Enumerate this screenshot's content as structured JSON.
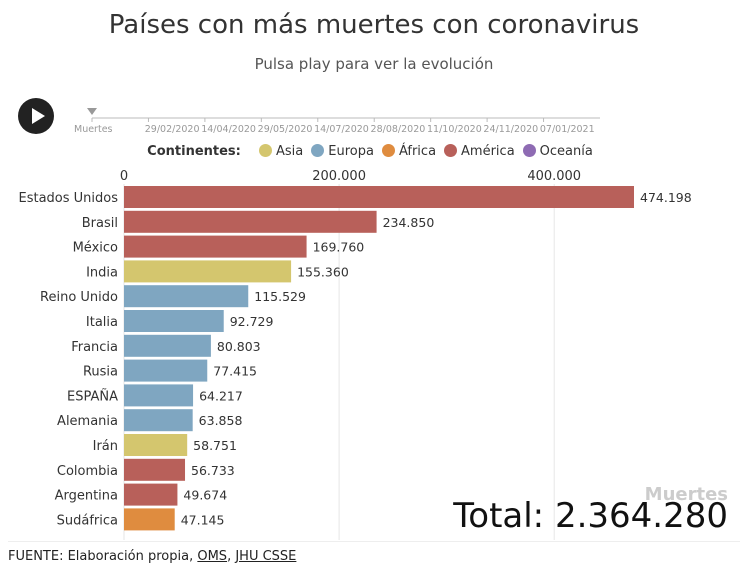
{
  "header": {
    "title": "Países con más muertes con coronavirus",
    "subtitle": "Pulsa play para ver la evolución"
  },
  "timeline": {
    "start_label": "Muertes",
    "dates": [
      "29/02/2020",
      "14/04/2020",
      "29/05/2020",
      "14/07/2020",
      "28/08/2020",
      "11/10/2020",
      "24/11/2020",
      "07/01/2021"
    ],
    "position_fraction": 0.0
  },
  "legend": {
    "title": "Continentes:",
    "items": [
      {
        "label": "Asia",
        "color": "#d4c66e"
      },
      {
        "label": "Europa",
        "color": "#7fa6c1"
      },
      {
        "label": "África",
        "color": "#df8c3f"
      },
      {
        "label": "América",
        "color": "#b8605a"
      },
      {
        "label": "Oceanía",
        "color": "#8e6bb3"
      }
    ]
  },
  "chart_data": {
    "type": "bar",
    "orientation": "horizontal",
    "categories": [
      "Estados Unidos",
      "Brasil",
      "México",
      "India",
      "Reino Unido",
      "Italia",
      "Francia",
      "Rusia",
      "ESPAÑA",
      "Alemania",
      "Irán",
      "Colombia",
      "Argentina",
      "Sudáfrica"
    ],
    "values": [
      474198,
      234850,
      169760,
      155360,
      115529,
      92729,
      80803,
      77415,
      64217,
      63858,
      58751,
      56733,
      49674,
      47145
    ],
    "value_labels": [
      "474.198",
      "234.850",
      "169.760",
      "155.360",
      "115.529",
      "92.729",
      "80.803",
      "77.415",
      "64.217",
      "63.858",
      "58.751",
      "56.733",
      "49.674",
      "47.145"
    ],
    "continents": [
      "América",
      "América",
      "América",
      "Asia",
      "Europa",
      "Europa",
      "Europa",
      "Europa",
      "Europa",
      "Europa",
      "Asia",
      "América",
      "América",
      "África"
    ],
    "xlim": [
      0,
      480000
    ],
    "xticks": [
      0,
      200000,
      400000
    ],
    "xtick_labels": [
      "0",
      "200.000",
      "400.000"
    ],
    "grid": true
  },
  "total": {
    "label": "Muertes",
    "text": "Total: 2.364.280"
  },
  "source": {
    "prefix": "FUENTE: Elaboración propia, ",
    "link1": "OMS",
    "separator": ", ",
    "link2": "JHU CSSE"
  }
}
